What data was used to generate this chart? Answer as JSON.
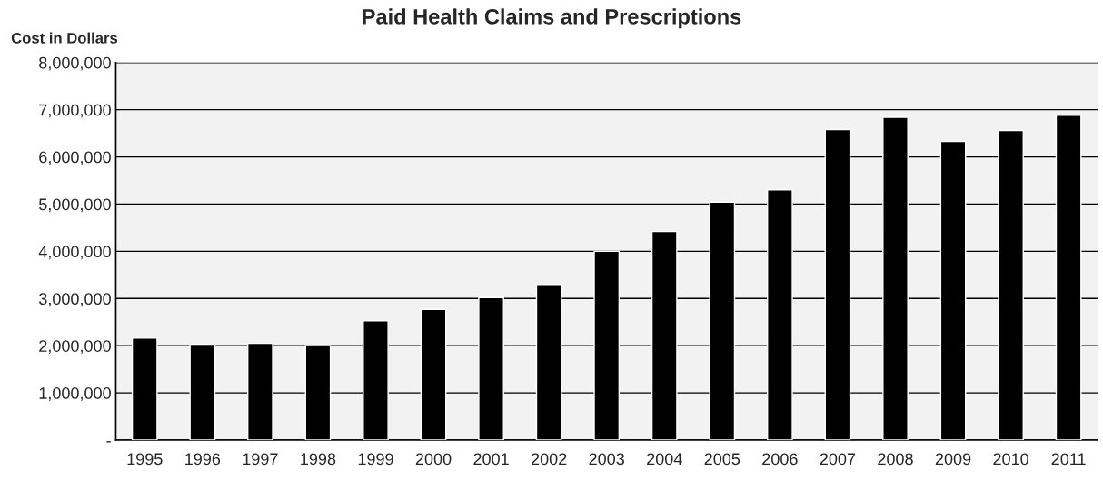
{
  "chart_data": {
    "type": "bar",
    "title": "Paid Health Claims and Prescriptions",
    "ylabel": "Cost in Dollars",
    "categories": [
      "1995",
      "1996",
      "1997",
      "1998",
      "1999",
      "2000",
      "2001",
      "2002",
      "2003",
      "2004",
      "2005",
      "2006",
      "2007",
      "2008",
      "2009",
      "2010",
      "2011"
    ],
    "values": [
      2160000,
      2030000,
      2050000,
      2000000,
      2530000,
      2770000,
      3020000,
      3300000,
      4000000,
      4420000,
      5040000,
      5300000,
      6580000,
      6840000,
      6330000,
      6560000,
      6880000
    ],
    "color": "#000000",
    "ylim": [
      0,
      8000000
    ],
    "yticks": [
      {
        "value": 0,
        "label": "-"
      },
      {
        "value": 1000000,
        "label": "1,000,000"
      },
      {
        "value": 2000000,
        "label": "2,000,000"
      },
      {
        "value": 3000000,
        "label": "3,000,000"
      },
      {
        "value": 4000000,
        "label": "4,000,000"
      },
      {
        "value": 5000000,
        "label": "5,000,000"
      },
      {
        "value": 6000000,
        "label": "6,000,000"
      },
      {
        "value": 7000000,
        "label": "7,000,000"
      },
      {
        "value": 8000000,
        "label": "8,000,000"
      }
    ],
    "grid": "y"
  }
}
